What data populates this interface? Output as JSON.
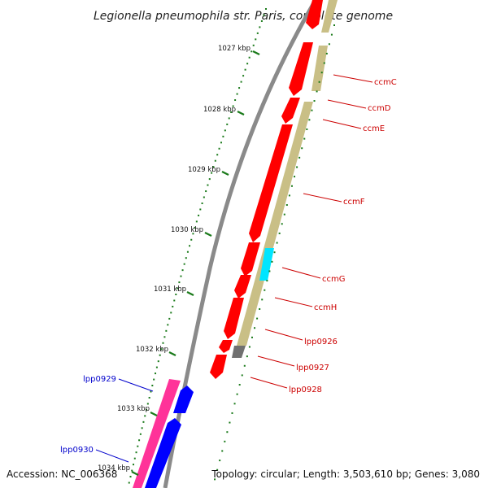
{
  "title": "Legionella pneumophila str. Paris, complete genome",
  "footer": {
    "accession": "Accession: NC_006368",
    "topology": "Topology: circular; Length: 3,503,610 bp; Genes: 3,080"
  },
  "ticks": [
    "1027 kbp",
    "1028 kbp",
    "1029 kbp",
    "1030 kbp",
    "1031 kbp",
    "1032 kbp",
    "1033 kbp",
    "1034 kbp"
  ],
  "genes_forward_labels": [
    "ccmC",
    "ccmD",
    "ccmE",
    "ccmF",
    "ccmG",
    "ccmH",
    "lpp0926",
    "lpp0927",
    "lpp0928"
  ],
  "genes_reverse_labels": [
    "lpp0929",
    "lpp0930"
  ],
  "colors": {
    "cds_forward": "#ff0000",
    "cds_reverse": "#0000ff",
    "gc_band": "#c9bf86",
    "gc_high": "#00e5ff",
    "gc_low": "#707070",
    "pink_band": "#ff3399",
    "backbone": "#8a8a8a",
    "tick": "#1a7a1a",
    "label_red": "#cc0000",
    "label_blue": "#0000cc"
  }
}
